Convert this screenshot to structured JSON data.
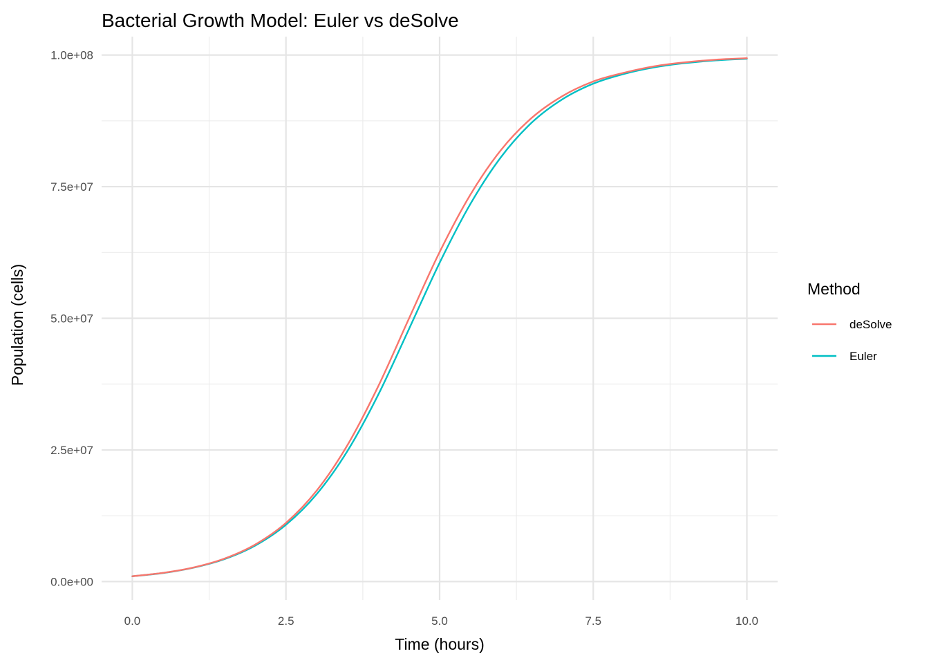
{
  "chart_data": {
    "type": "line",
    "title": "Bacterial Growth Model: Euler vs deSolve",
    "xlabel": "Time (hours)",
    "ylabel": "Population (cells)",
    "xlim": [
      -0.5,
      10.5
    ],
    "ylim": [
      -3500000,
      103500000
    ],
    "x_ticks": [
      0,
      2.5,
      5,
      7.5,
      10
    ],
    "x_tick_labels": [
      "0.0",
      "2.5",
      "5.0",
      "7.5",
      "10.0"
    ],
    "y_ticks": [
      0,
      25000000,
      50000000,
      75000000,
      100000000
    ],
    "y_tick_labels": [
      "0.0e+00",
      "2.5e+07",
      "5.0e+07",
      "7.5e+07",
      "1.0e+08"
    ],
    "grid": true,
    "legend": {
      "title": "Method",
      "position": "right"
    },
    "series": [
      {
        "name": "deSolve",
        "color": "#F8766D",
        "x": [
          0,
          0.5,
          1,
          1.5,
          2,
          2.5,
          3,
          3.5,
          4,
          4.5,
          5,
          5.5,
          6,
          6.5,
          7,
          7.5,
          8,
          8.5,
          9,
          9.5,
          10
        ],
        "values": [
          1000000,
          1640000,
          2680000,
          4360000,
          7030000,
          11140000,
          17270000,
          25910000,
          37060000,
          49920000,
          62580000,
          73470000,
          81980000,
          88080000,
          92220000,
          94990000,
          96640000,
          97880000,
          98630000,
          99130000,
          99400000
        ]
      },
      {
        "name": "Euler",
        "color": "#00BFC4",
        "x": [
          0,
          0.5,
          1,
          1.5,
          2,
          2.5,
          3,
          3.5,
          4,
          4.5,
          5,
          5.5,
          6,
          6.5,
          7,
          7.5,
          8,
          8.5,
          9,
          9.5,
          10
        ],
        "values": [
          1000000,
          1620000,
          2640000,
          4260000,
          6830000,
          10780000,
          16600000,
          24790000,
          35450000,
          47920000,
          60540000,
          71700000,
          80640000,
          87180000,
          91620000,
          94570000,
          96420000,
          97680000,
          98480000,
          99000000,
          99300000
        ]
      }
    ]
  }
}
